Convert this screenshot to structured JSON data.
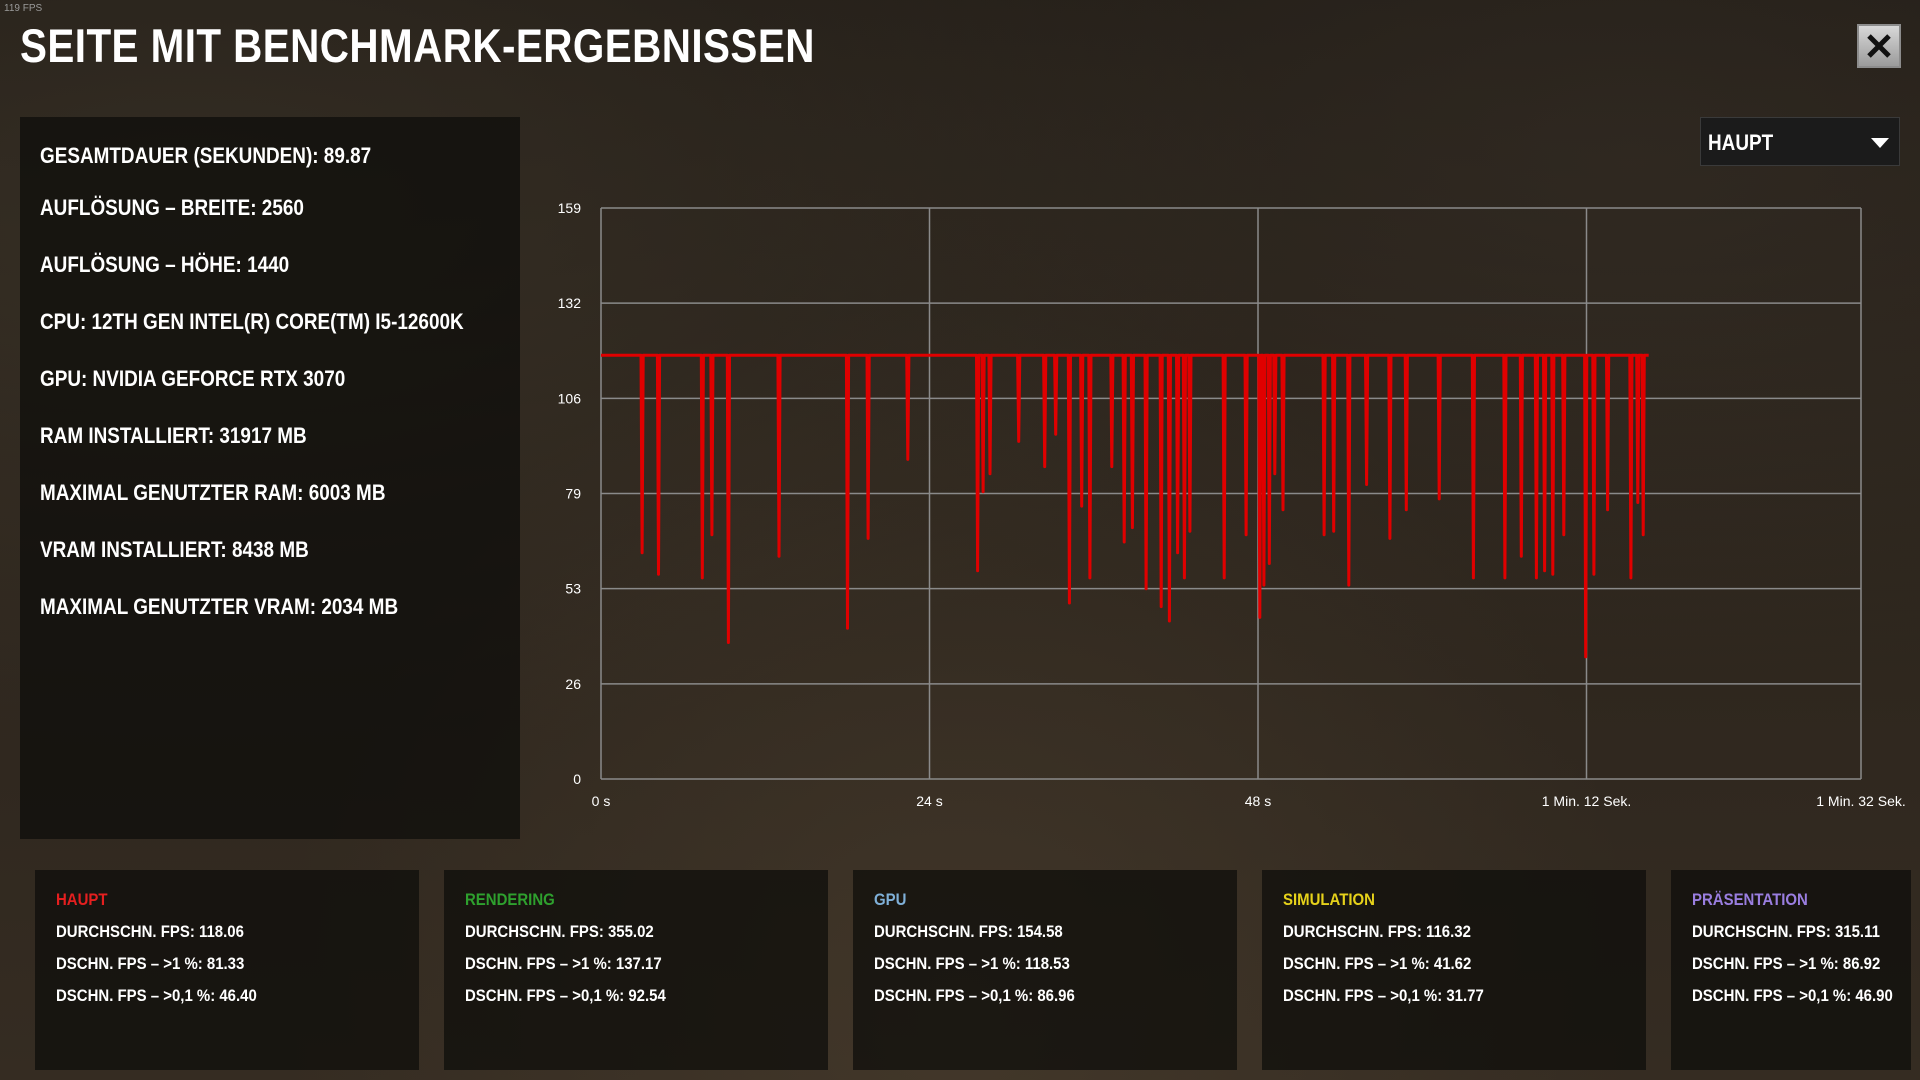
{
  "fps_counter": "119 FPS",
  "title": "SEITE MIT BENCHMARK-ERGEBNISSEN",
  "close_icon": "close-x-icon",
  "info_lines": [
    "GESAMTDAUER (SEKUNDEN): 89.87",
    "AUFLÖSUNG – BREITE: 2560",
    "AUFLÖSUNG – HÖHE: 1440",
    "CPU: 12TH GEN INTEL(R) CORE(TM) I5-12600K",
    "GPU: NVIDIA GEFORCE RTX 3070",
    "RAM INSTALLIERT: 31917  MB",
    "MAXIMAL GENUTZTER RAM: 6003  MB",
    "VRAM INSTALLIERT: 8438  MB",
    "MAXIMAL GENUTZTER VRAM: 2034  MB"
  ],
  "dropdown": {
    "selected": "HAUPT",
    "icon": "chevron-down-icon"
  },
  "chart_data": {
    "type": "line",
    "title": "",
    "xlabel": "",
    "ylabel": "",
    "y_ticks": [
      "159",
      "132",
      "106",
      "79",
      "53",
      "26",
      "0"
    ],
    "x_ticks": [
      "0 s",
      "24 s",
      "48 s",
      "1 Min. 12 Sek.",
      "1 Min. 32 Sek."
    ],
    "ylim": [
      0,
      159
    ],
    "xlim": [
      0,
      92
    ],
    "grid": true,
    "series": [
      {
        "color": "#e00000",
        "baseline": 118,
        "x_end": 76.5,
        "dips": [
          [
            3,
            63
          ],
          [
            4.2,
            57
          ],
          [
            7.4,
            56
          ],
          [
            8.1,
            68
          ],
          [
            9.3,
            38
          ],
          [
            13,
            62
          ],
          [
            18,
            42
          ],
          [
            19.5,
            67
          ],
          [
            22.4,
            89
          ],
          [
            27.5,
            58
          ],
          [
            27.9,
            80
          ],
          [
            28.4,
            85
          ],
          [
            30.5,
            94
          ],
          [
            32.4,
            87
          ],
          [
            33.2,
            96
          ],
          [
            34.2,
            49
          ],
          [
            35.1,
            76
          ],
          [
            35.7,
            56
          ],
          [
            37.3,
            87
          ],
          [
            38.2,
            66
          ],
          [
            38.8,
            70
          ],
          [
            39.8,
            53
          ],
          [
            40.9,
            48
          ],
          [
            41.5,
            44
          ],
          [
            42.1,
            63
          ],
          [
            42.6,
            56
          ],
          [
            43,
            69
          ],
          [
            45.5,
            56
          ],
          [
            47.1,
            68
          ],
          [
            48.1,
            45
          ],
          [
            48.4,
            54
          ],
          [
            48.8,
            60
          ],
          [
            49.2,
            85
          ],
          [
            49.8,
            75
          ],
          [
            52.8,
            68
          ],
          [
            53.5,
            69
          ],
          [
            54.6,
            54
          ],
          [
            55.9,
            82
          ],
          [
            57.6,
            67
          ],
          [
            58.8,
            75
          ],
          [
            61.2,
            78
          ],
          [
            63.7,
            56
          ],
          [
            66,
            56
          ],
          [
            67.2,
            62
          ],
          [
            68.3,
            56
          ],
          [
            68.9,
            58
          ],
          [
            69.5,
            57
          ],
          [
            70.3,
            68
          ],
          [
            71.9,
            34
          ],
          [
            72.5,
            57
          ],
          [
            73.5,
            75
          ],
          [
            75.2,
            56
          ],
          [
            75.7,
            77
          ],
          [
            76.1,
            68
          ]
        ]
      }
    ]
  },
  "stat_cards": [
    {
      "title": "HAUPT",
      "color": "#e51f1f",
      "lines": [
        "DURCHSCHN. FPS: 118.06",
        "DSCHN. FPS – >1 %: 81.33",
        "DSCHN. FPS – >0,1 %: 46.40"
      ]
    },
    {
      "title": "RENDERING",
      "color": "#2ea02e",
      "lines": [
        "DURCHSCHN. FPS: 355.02",
        "DSCHN. FPS – >1 %: 137.17",
        "DSCHN. FPS – >0,1 %: 92.54"
      ]
    },
    {
      "title": "GPU",
      "color": "#7fb0d8",
      "lines": [
        "DURCHSCHN. FPS: 154.58",
        "DSCHN. FPS – >1 %: 118.53",
        "DSCHN. FPS – >0,1 %: 86.96"
      ]
    },
    {
      "title": "SIMULATION",
      "color": "#e6d21a",
      "lines": [
        "DURCHSCHN. FPS: 116.32",
        "DSCHN. FPS – >1 %: 41.62",
        "DSCHN. FPS – >0,1 %: 31.77"
      ]
    },
    {
      "title": "PRÄSENTATION",
      "color": "#9a7ee0",
      "lines": [
        "DURCHSCHN. FPS: 315.11",
        "DSCHN. FPS – >1 %: 86.92",
        "DSCHN. FPS – >0,1 %: 46.90"
      ]
    }
  ]
}
